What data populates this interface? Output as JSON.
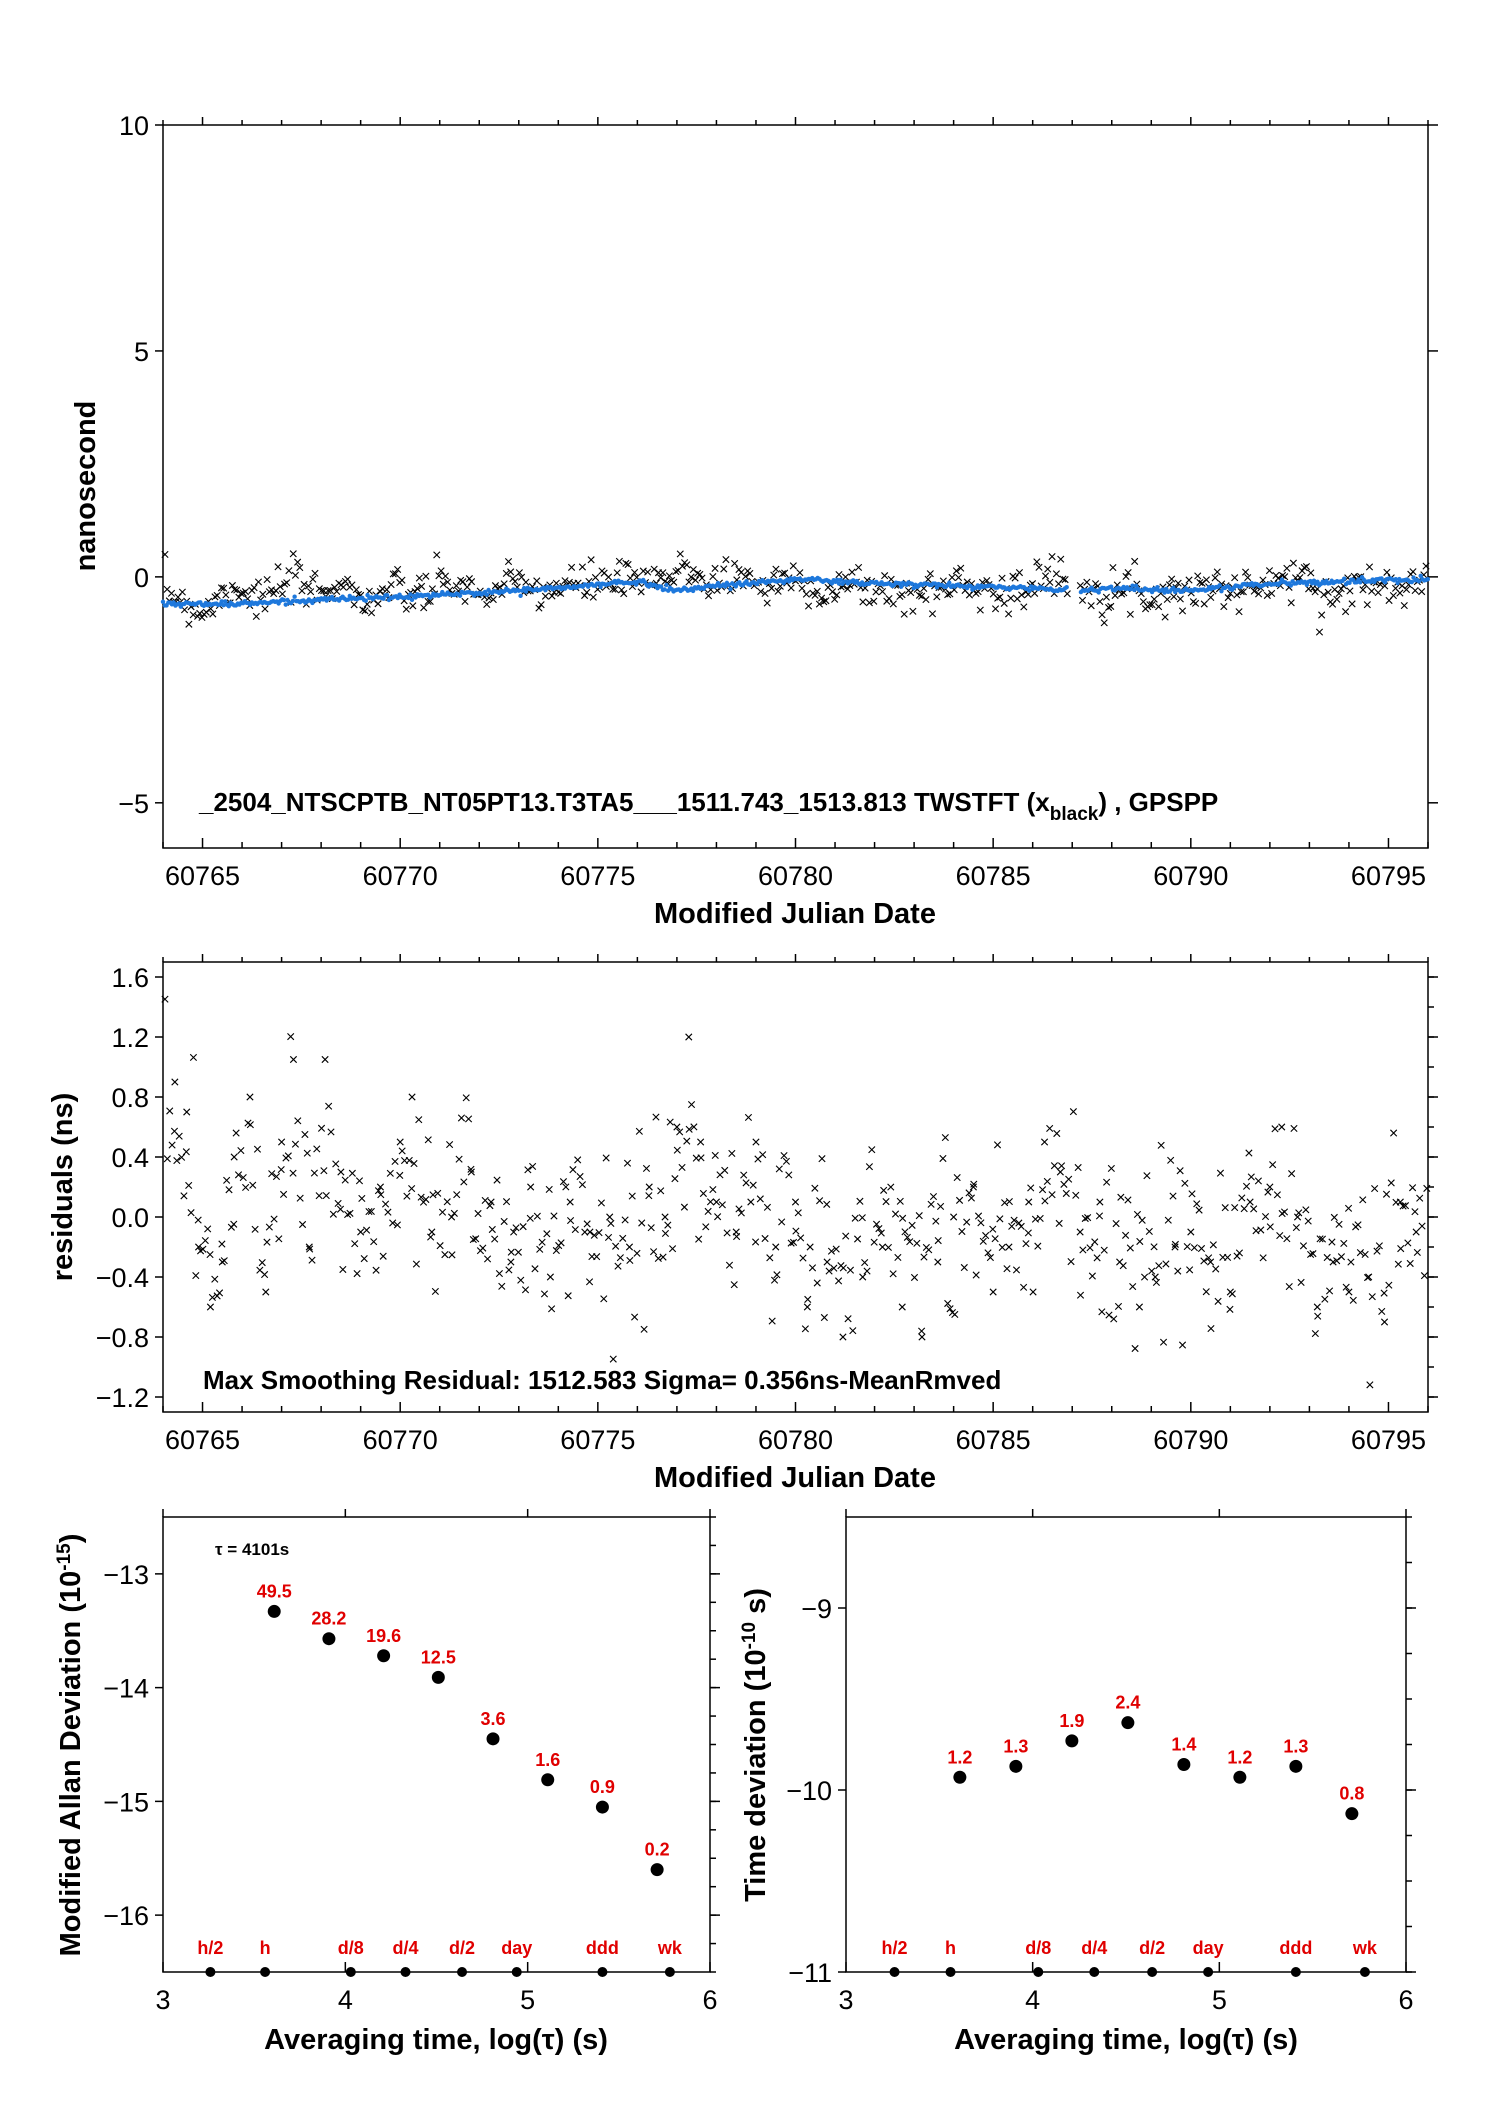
{
  "chart_data": [
    {
      "type": "scatter",
      "ylabel": "nanosecond",
      "xlabel": "Modified Julian Date",
      "xlim": [
        60764.0,
        60796.0
      ],
      "ylim": [
        -6.0,
        10.0
      ],
      "yticks": [
        -5,
        0,
        5,
        10
      ],
      "xticks": [
        60765,
        60770,
        60775,
        60780,
        60785,
        60790,
        60795
      ],
      "annotation": {
        "main": "_2504_NTSCPTB_NT05PT13.T3TA5___1511.743_1513.813     TWSTFT (x",
        "sub": "black",
        "tail": ") ,  GPSPP"
      },
      "series": [
        {
          "color": "#000000",
          "marker": "x",
          "description_points": [
            [
              60764.2,
              -0.2
            ],
            [
              60765.0,
              -0.9
            ],
            [
              60765.8,
              0.1
            ],
            [
              60766.5,
              -0.5
            ],
            [
              60767.2,
              0.2
            ],
            [
              60768.0,
              -0.3
            ],
            [
              60768.5,
              0.3
            ],
            [
              60769.0,
              -0.6
            ],
            [
              60769.8,
              -0.2
            ],
            [
              60770.5,
              -0.4
            ],
            [
              60771.3,
              0.1
            ],
            [
              60772.0,
              -0.5
            ],
            [
              60772.8,
              -0.1
            ],
            [
              60773.6,
              -0.3
            ],
            [
              60774.4,
              -0.2
            ],
            [
              60775.2,
              0.0
            ],
            [
              60776.0,
              -0.2
            ],
            [
              60776.8,
              0.1
            ],
            [
              60777.3,
              0.6
            ],
            [
              60777.8,
              -0.1
            ],
            [
              60778.5,
              0.2
            ],
            [
              60779.3,
              -0.3
            ],
            [
              60780.0,
              0.0
            ],
            [
              60780.8,
              -0.5
            ],
            [
              60781.5,
              -0.2
            ],
            [
              60782.3,
              -0.4
            ],
            [
              60783.0,
              -0.6
            ],
            [
              60783.8,
              -0.2
            ],
            [
              60784.5,
              -0.1
            ],
            [
              60785.2,
              -0.4
            ],
            [
              60786.0,
              -0.3
            ],
            [
              60786.5,
              0.3
            ],
            [
              60787.5,
              -0.2
            ],
            [
              60788.3,
              -0.3
            ],
            [
              60789.0,
              -0.5
            ],
            [
              60789.8,
              -0.3
            ],
            [
              60790.5,
              -0.2
            ],
            [
              60791.3,
              -0.4
            ],
            [
              60792.0,
              -0.1
            ],
            [
              60792.8,
              0.0
            ],
            [
              60793.5,
              -0.6
            ],
            [
              60794.3,
              -0.3
            ],
            [
              60795.0,
              -0.2
            ],
            [
              60795.8,
              0.1
            ]
          ]
        },
        {
          "color": "#1e78dc",
          "marker": "dot",
          "trend_points": [
            [
              60764.0,
              -0.6
            ],
            [
              60766.0,
              -0.6
            ],
            [
              60768.0,
              -0.5
            ],
            [
              60770.0,
              -0.45
            ],
            [
              60772.0,
              -0.35
            ],
            [
              60774.0,
              -0.25
            ],
            [
              60776.0,
              -0.1
            ],
            [
              60777.0,
              -0.3
            ],
            [
              60778.0,
              -0.2
            ],
            [
              60780.0,
              -0.05
            ],
            [
              60782.0,
              -0.15
            ],
            [
              60784.0,
              -0.2
            ],
            [
              60786.0,
              -0.25
            ],
            [
              60787.0,
              -0.3
            ],
            [
              60788.0,
              -0.25
            ],
            [
              60790.0,
              -0.3
            ],
            [
              60792.0,
              -0.15
            ],
            [
              60794.0,
              -0.1
            ],
            [
              60796.0,
              -0.05
            ]
          ]
        }
      ]
    },
    {
      "type": "scatter",
      "ylabel": "residuals (ns)",
      "xlabel": "Modified Julian Date",
      "xlim": [
        60764.0,
        60796.0
      ],
      "ylim": [
        -1.3,
        1.7
      ],
      "yticks": [
        -1.2,
        -0.8,
        -0.4,
        0.0,
        0.4,
        0.8,
        1.2,
        1.6
      ],
      "ytick_labels": [
        "−1.2",
        "−0.8",
        "−0.4",
        "0.0",
        "0.4",
        "0.8",
        "1.2",
        "1.6"
      ],
      "xticks": [
        60765,
        60770,
        60775,
        60780,
        60785,
        60790,
        60795
      ],
      "annotation": "Max Smoothing Residual: 1512.583  Sigma= 0.356ns-MeanRmved",
      "points": [
        [
          60764.3,
          0.9
        ],
        [
          60764.6,
          0.7
        ],
        [
          60764.9,
          -0.2
        ],
        [
          60765.2,
          -0.6
        ],
        [
          60765.5,
          -0.3
        ],
        [
          60765.8,
          0.4
        ],
        [
          60766.2,
          0.8
        ],
        [
          60766.6,
          -0.5
        ],
        [
          60767.0,
          0.5
        ],
        [
          60767.3,
          1.05
        ],
        [
          60767.7,
          -0.2
        ],
        [
          60768.1,
          1.05
        ],
        [
          60768.5,
          0.3
        ],
        [
          60769.0,
          -0.1
        ],
        [
          60769.5,
          0.2
        ],
        [
          60770.0,
          0.5
        ],
        [
          60770.3,
          0.8
        ],
        [
          60770.8,
          -0.1
        ],
        [
          60771.3,
          0.0
        ],
        [
          60771.8,
          0.3
        ],
        [
          60772.3,
          0.1
        ],
        [
          60772.8,
          -0.3
        ],
        [
          60773.3,
          0.2
        ],
        [
          60773.8,
          -0.4
        ],
        [
          60774.3,
          0.1
        ],
        [
          60774.8,
          -0.1
        ],
        [
          60775.3,
          0.0
        ],
        [
          60775.8,
          -0.2
        ],
        [
          60776.3,
          0.2
        ],
        [
          60776.7,
          0.0
        ],
        [
          60777.0,
          0.6
        ],
        [
          60777.3,
          1.2
        ],
        [
          60777.6,
          0.5
        ],
        [
          60778.0,
          0.1
        ],
        [
          60778.5,
          -0.1
        ],
        [
          60779.0,
          0.5
        ],
        [
          60779.5,
          -0.2
        ],
        [
          60780.0,
          0.1
        ],
        [
          60780.3,
          -0.6
        ],
        [
          60780.8,
          -0.3
        ],
        [
          60781.2,
          -0.8
        ],
        [
          60781.7,
          -0.4
        ],
        [
          60782.2,
          -0.2
        ],
        [
          60782.7,
          -0.6
        ],
        [
          60783.2,
          -0.8
        ],
        [
          60783.6,
          -0.3
        ],
        [
          60784.0,
          0.0
        ],
        [
          60784.5,
          0.2
        ],
        [
          60785.0,
          -0.5
        ],
        [
          60785.4,
          -0.2
        ],
        [
          60785.9,
          0.1
        ],
        [
          60786.3,
          0.5
        ],
        [
          60786.7,
          0.3
        ],
        [
          60787.2,
          -0.1
        ],
        [
          60787.7,
          0.1
        ],
        [
          60788.2,
          -0.3
        ],
        [
          60788.7,
          -0.6
        ],
        [
          60789.1,
          -0.4
        ],
        [
          60789.6,
          -0.2
        ],
        [
          60790.0,
          -0.1
        ],
        [
          60790.5,
          -0.3
        ],
        [
          60791.0,
          -0.5
        ],
        [
          60791.5,
          0.1
        ],
        [
          60792.0,
          0.2
        ],
        [
          60792.3,
          0.6
        ],
        [
          60792.7,
          0.0
        ],
        [
          60793.2,
          -0.6
        ],
        [
          60793.6,
          -0.3
        ],
        [
          60794.0,
          -0.5
        ],
        [
          60794.5,
          -0.4
        ],
        [
          60794.9,
          -0.7
        ],
        [
          60795.3,
          0.1
        ],
        [
          60795.7,
          -0.1
        ]
      ]
    },
    {
      "type": "scatter",
      "ylabel": "Modified Allan Deviation (10",
      "ylabel_exp": "-15",
      "ylabel_tail": ")",
      "xlabel": "Averaging time, log(τ) (s)",
      "xlim": [
        3.0,
        6.0
      ],
      "ylim": [
        -16.5,
        -12.5
      ],
      "yticks": [
        -16,
        -15,
        -14,
        -13
      ],
      "ytick_labels": [
        "−16",
        "−15",
        "−14",
        "−13"
      ],
      "xticks": [
        3,
        4,
        5,
        6
      ],
      "tau_note": "τ = 4101s",
      "x": [
        3.61,
        3.91,
        4.21,
        4.51,
        4.81,
        5.11,
        5.41,
        5.71
      ],
      "y": [
        -13.33,
        -13.57,
        -13.72,
        -13.91,
        -14.45,
        -14.81,
        -15.05,
        -15.6
      ],
      "value_labels": [
        "49.5",
        "28.2",
        "19.6",
        "12.5",
        "3.6",
        "1.6",
        "0.9",
        "0.2"
      ],
      "markers": [
        {
          "x": 3.26,
          "label": "h/2"
        },
        {
          "x": 3.56,
          "label": "h"
        },
        {
          "x": 4.03,
          "label": "d/8"
        },
        {
          "x": 4.33,
          "label": "d/4"
        },
        {
          "x": 4.64,
          "label": "d/2"
        },
        {
          "x": 4.94,
          "label": "day"
        },
        {
          "x": 5.41,
          "label": "ddd"
        },
        {
          "x": 5.78,
          "label": "wk"
        }
      ]
    },
    {
      "type": "scatter",
      "ylabel": "Time deviation (10",
      "ylabel_exp": "-10",
      "ylabel_tail": " s)",
      "xlabel": "Averaging time, log(τ) (s)",
      "xlim": [
        3.0,
        6.0
      ],
      "ylim": [
        -11.0,
        -8.5
      ],
      "yticks": [
        -11,
        -10,
        -9
      ],
      "ytick_labels": [
        "−11",
        "−10",
        "−9"
      ],
      "xticks": [
        3,
        4,
        5,
        6
      ],
      "x": [
        3.61,
        3.91,
        4.21,
        4.51,
        4.81,
        5.11,
        5.41,
        5.71
      ],
      "y": [
        -9.93,
        -9.87,
        -9.73,
        -9.63,
        -9.86,
        -9.93,
        -9.87,
        -10.13
      ],
      "value_labels": [
        "1.2",
        "1.3",
        "1.9",
        "2.4",
        "1.4",
        "1.2",
        "1.3",
        "0.8"
      ],
      "markers": [
        {
          "x": 3.26,
          "label": "h/2"
        },
        {
          "x": 3.56,
          "label": "h"
        },
        {
          "x": 4.03,
          "label": "d/8"
        },
        {
          "x": 4.33,
          "label": "d/4"
        },
        {
          "x": 4.64,
          "label": "d/2"
        },
        {
          "x": 4.94,
          "label": "day"
        },
        {
          "x": 5.41,
          "label": "ddd"
        },
        {
          "x": 5.78,
          "label": "wk"
        }
      ]
    }
  ],
  "colors": {
    "axes": "#000000",
    "values": "#e00000",
    "smooth": "#1e78dc"
  }
}
